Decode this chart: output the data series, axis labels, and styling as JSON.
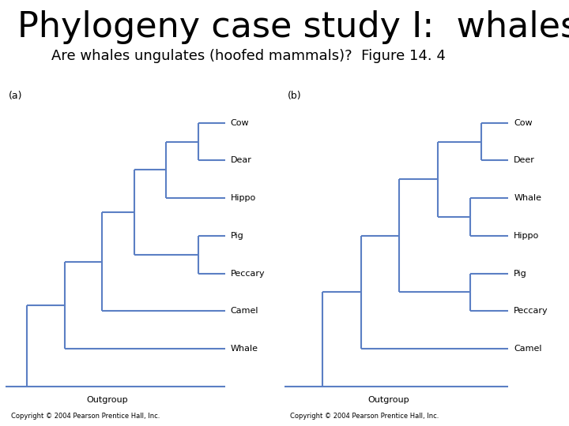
{
  "title": "Phylogeny case study I:  whales",
  "subtitle": "Are whales ungulates (hoofed mammals)?  Figure 14. 4",
  "title_fontsize": 32,
  "subtitle_fontsize": 13,
  "bg_color": "#ffffff",
  "tree_color": "#5b7fc4",
  "tree_lw": 1.5,
  "copyright": "Copyright © 2004 Pearson Prentice Hall, Inc.",
  "panel_a_label": "(a)",
  "panel_b_label": "(b)",
  "taxa_a": [
    "Cow",
    "Dear",
    "Hippo",
    "Pig",
    "Peccary",
    "Camel",
    "Whale"
  ],
  "taxa_b": [
    "Cow",
    "Deer",
    "Whale",
    "Hippo",
    "Pig",
    "Peccary",
    "Camel"
  ]
}
